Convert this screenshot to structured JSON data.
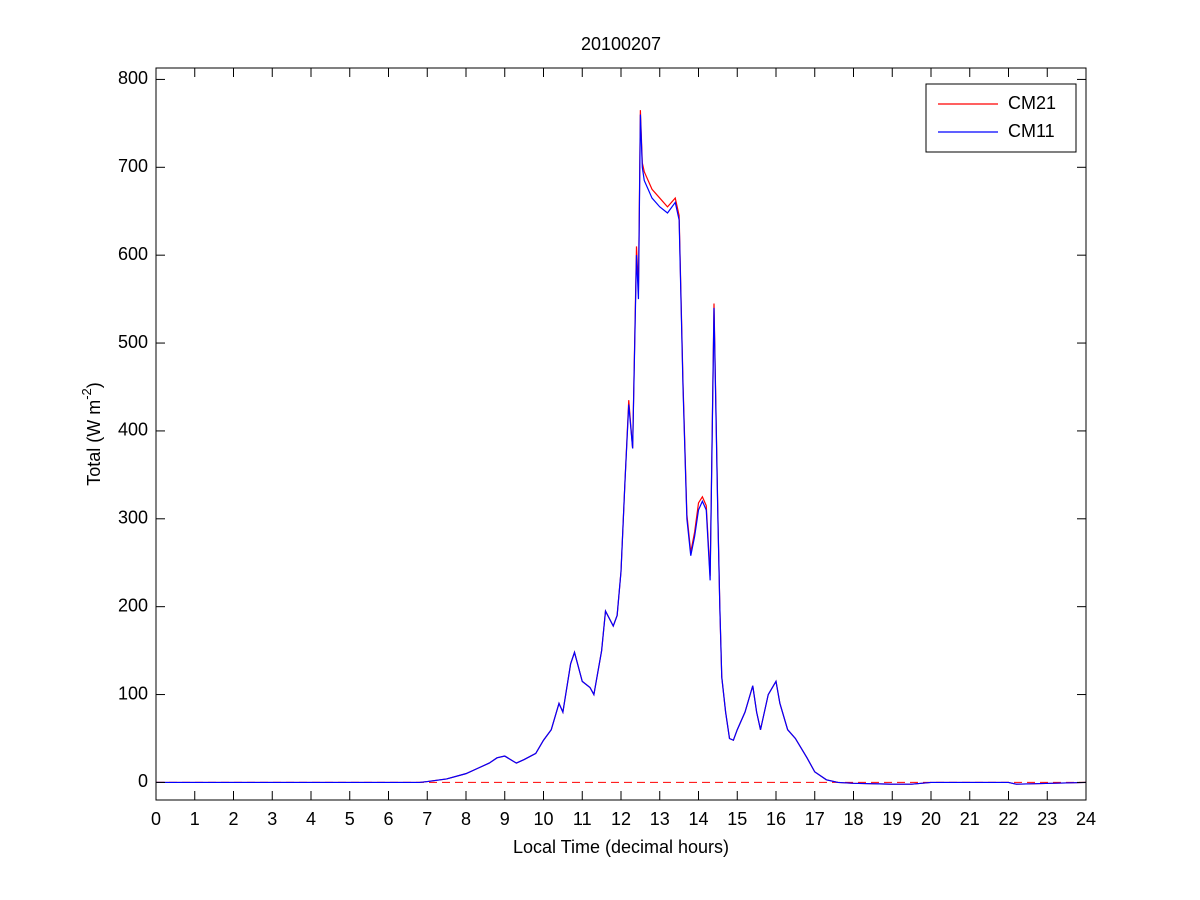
{
  "chart_data": {
    "type": "line",
    "title": "20100207",
    "xlabel": "Local Time (decimal hours)",
    "ylabel": {
      "text": "Total (W m",
      "sup": "-2",
      "end": ")"
    },
    "x": [
      0,
      6.8,
      7,
      7.5,
      8,
      8.3,
      8.6,
      8.8,
      9,
      9.3,
      9.5,
      9.8,
      10,
      10.2,
      10.4,
      10.5,
      10.7,
      10.8,
      11,
      11.2,
      11.3,
      11.5,
      11.6,
      11.8,
      11.9,
      12.0,
      12.1,
      12.2,
      12.3,
      12.4,
      12.45,
      12.5,
      12.55,
      12.6,
      12.7,
      12.8,
      13.0,
      13.2,
      13.4,
      13.5,
      13.6,
      13.7,
      13.8,
      13.9,
      14.0,
      14.1,
      14.2,
      14.3,
      14.4,
      14.5,
      14.55,
      14.6,
      14.7,
      14.8,
      14.9,
      15.0,
      15.2,
      15.4,
      15.5,
      15.6,
      15.8,
      16.0,
      16.1,
      16.3,
      16.5,
      16.8,
      17.0,
      17.3,
      17.6,
      18.0,
      19.0,
      19.5,
      20,
      22,
      22.2,
      24
    ],
    "series": [
      {
        "name": "CM21",
        "color": "#ff0000",
        "values": [
          0,
          0,
          1,
          4,
          10,
          16,
          22,
          28,
          30,
          22,
          26,
          33,
          48,
          60,
          90,
          80,
          135,
          148,
          115,
          108,
          100,
          150,
          195,
          178,
          190,
          240,
          340,
          435,
          380,
          610,
          560,
          765,
          705,
          695,
          685,
          675,
          665,
          655,
          665,
          645,
          455,
          305,
          262,
          285,
          318,
          325,
          315,
          235,
          545,
          305,
          200,
          120,
          80,
          50,
          48,
          60,
          80,
          110,
          80,
          60,
          100,
          115,
          90,
          60,
          50,
          28,
          12,
          3,
          0,
          -1,
          -2,
          -2,
          0,
          0,
          -2,
          0
        ]
      },
      {
        "name": "CM11",
        "color": "#0000ff",
        "values": [
          0,
          0,
          1,
          4,
          10,
          16,
          22,
          28,
          30,
          22,
          26,
          33,
          48,
          60,
          90,
          80,
          135,
          148,
          115,
          108,
          100,
          150,
          195,
          178,
          190,
          240,
          340,
          430,
          380,
          600,
          550,
          760,
          700,
          685,
          675,
          665,
          655,
          648,
          660,
          640,
          450,
          300,
          258,
          280,
          310,
          320,
          310,
          230,
          540,
          300,
          200,
          120,
          80,
          50,
          48,
          60,
          80,
          110,
          80,
          60,
          100,
          115,
          90,
          60,
          50,
          28,
          12,
          3,
          0,
          -1,
          -2,
          -2,
          0,
          0,
          -2,
          0
        ]
      }
    ],
    "reference_line": {
      "value": 0,
      "color": "#ff0000"
    },
    "xlim": [
      0,
      24
    ],
    "xticks": [
      0,
      1,
      2,
      3,
      4,
      5,
      6,
      7,
      8,
      9,
      10,
      11,
      12,
      13,
      14,
      15,
      16,
      17,
      18,
      19,
      20,
      21,
      22,
      23,
      24
    ],
    "ylim": [
      -20,
      813
    ],
    "yticks": [
      0,
      100,
      200,
      300,
      400,
      500,
      600,
      700,
      800
    ],
    "legend": "upper-right"
  }
}
